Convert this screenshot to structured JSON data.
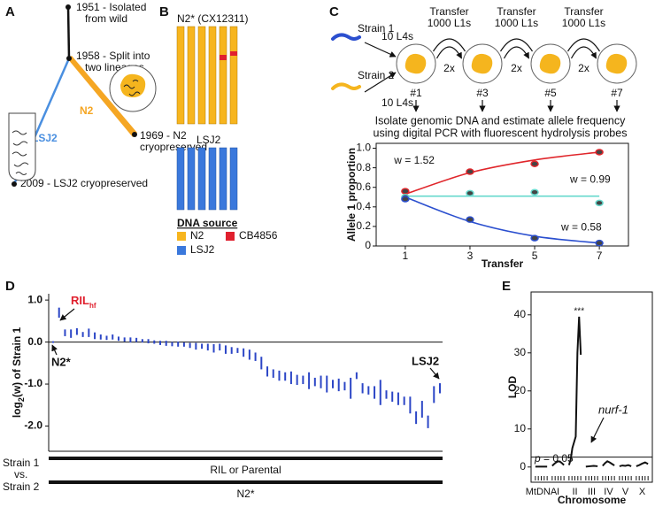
{
  "panel_labels": [
    "A",
    "B",
    "C",
    "D",
    "E"
  ],
  "panel_a": {
    "events": [
      [
        "1951 - Isolated",
        "from wild"
      ],
      [
        "1958 - Split into",
        "two lineages"
      ],
      [
        "1969 - N2",
        "cryopreserved"
      ],
      [
        "2009 - LSJ2 cryopreserved"
      ]
    ],
    "lineages": [
      {
        "name": "N2",
        "color": "#f5a623"
      },
      {
        "name": "LSJ2",
        "color": "#4a8fe0"
      }
    ]
  },
  "panel_b": {
    "top_label": "N2* (CX12311)",
    "bottom_label": "LSJ2",
    "legend_title": "DNA source",
    "legend": [
      {
        "name": "N2",
        "color": "#f7b51e"
      },
      {
        "name": "CB4856",
        "color": "#e0202e"
      },
      {
        "name": "LSJ2",
        "color": "#3a78dc"
      }
    ]
  },
  "panel_c": {
    "strains": [
      "Strain 1",
      "Strain 2"
    ],
    "inputs": [
      "10 L4s",
      "10 L4s"
    ],
    "transfers": [
      [
        "Transfer",
        "1000 L1s"
      ],
      [
        "Transfer",
        "1000 L1s"
      ],
      [
        "Transfer",
        "1000 L1s"
      ]
    ],
    "folds": [
      "2x",
      "2x",
      "2x"
    ],
    "plates": [
      "#1",
      "#3",
      "#5",
      "#7"
    ],
    "caption": [
      "Isolate genomic DNA and estimate allele frequency",
      "using digital PCR with fluorescent hydrolysis probes"
    ]
  },
  "chart_data": [
    {
      "type": "line",
      "x_label": "Transfer",
      "y_label": "Allele 1 proportion",
      "x": [
        1,
        3,
        5,
        7
      ],
      "xlim": [
        0.1,
        7.9
      ],
      "xticks": [
        1,
        3,
        5,
        7
      ],
      "ylim": [
        0,
        1.05
      ],
      "yticks": [
        0,
        0.2,
        0.4,
        0.6,
        0.8,
        {
          "value": 1,
          "label": "1.0"
        }
      ],
      "series": [
        {
          "name": "w = 1.52",
          "color": "#e0262b",
          "values": [
            0.56,
            0.76,
            0.84,
            0.96
          ],
          "fit": [
            0.53,
            0.75,
            0.88,
            0.96
          ]
        },
        {
          "name": "w = 0.99",
          "color": "#66d8cc",
          "values": [
            0.5,
            0.54,
            0.55,
            0.44
          ],
          "fit": [
            0.51,
            0.51,
            0.51,
            0.51
          ]
        },
        {
          "name": "w = 0.58",
          "color": "#2b4fcf",
          "values": [
            0.48,
            0.27,
            0.08,
            0.03
          ],
          "fit": [
            0.5,
            0.25,
            0.1,
            0.03
          ]
        }
      ]
    },
    {
      "type": "errorbar",
      "y_label": [
        "log",
        "2",
        "(w) of Strain 1"
      ],
      "ylim": [
        -2.6,
        1.15
      ],
      "yticks": [
        {
          "value": 1,
          "label": "1.0"
        },
        {
          "value": 0,
          "label": "0.0"
        },
        {
          "value": -1,
          "label": "-1.0"
        },
        {
          "value": -2,
          "label": "-2.0"
        }
      ],
      "color": "#2c46c6",
      "values": [
        0,
        0.7,
        0.22,
        0.2,
        0.25,
        0.18,
        0.22,
        0.15,
        0.12,
        0.1,
        0.12,
        0.08,
        0.06,
        0.05,
        0.05,
        0.03,
        0.02,
        0.0,
        -0.02,
        -0.03,
        -0.05,
        -0.05,
        -0.06,
        -0.08,
        -0.1,
        -0.1,
        -0.12,
        -0.15,
        -0.12,
        -0.18,
        -0.2,
        -0.2,
        -0.25,
        -0.3,
        -0.35,
        -0.5,
        -0.7,
        -0.75,
        -0.8,
        -0.82,
        -0.85,
        -0.9,
        -0.9,
        -0.92,
        -0.95,
        -0.95,
        -1.0,
        -1.0,
        -1.02,
        -1.05,
        -1.1,
        -0.8,
        -1.1,
        -1.15,
        -1.2,
        -1.2,
        -1.25,
        -1.3,
        -1.35,
        -1.4,
        -1.5,
        -1.8,
        -1.6,
        -1.9,
        -1.25,
        -1.1
      ],
      "errors": [
        0.02,
        0.12,
        0.08,
        0.1,
        0.08,
        0.06,
        0.1,
        0.08,
        0.06,
        0.05,
        0.06,
        0.05,
        0.05,
        0.06,
        0.05,
        0.04,
        0.05,
        0.04,
        0.05,
        0.06,
        0.05,
        0.06,
        0.05,
        0.06,
        0.08,
        0.06,
        0.08,
        0.1,
        0.08,
        0.1,
        0.08,
        0.06,
        0.1,
        0.12,
        0.1,
        0.15,
        0.12,
        0.1,
        0.12,
        0.1,
        0.15,
        0.12,
        0.1,
        0.2,
        0.1,
        0.15,
        0.2,
        0.1,
        0.15,
        0.1,
        0.25,
        0.08,
        0.12,
        0.1,
        0.15,
        0.3,
        0.1,
        0.12,
        0.15,
        0.1,
        0.2,
        0.15,
        0.2,
        0.15,
        0.2,
        0.12
      ],
      "annotations": {
        "ril": [
          "RIL",
          "hf"
        ],
        "n2": "N2*",
        "lsj2": "LSJ2"
      },
      "comparison": {
        "rows": [
          "Strain 1",
          "vs.",
          "Strain 2"
        ],
        "strain1": "RIL or Parental",
        "strain2": "N2*"
      }
    },
    {
      "type": "lod",
      "y_label": "LOD",
      "x_label": "Chromosome",
      "categories": [
        "MtDNA",
        "I",
        "II",
        "III",
        "IV",
        "V",
        "X"
      ],
      "traces": [
        [
          0.1,
          0.1
        ],
        [
          0.3,
          0.8,
          1.2,
          1.5,
          1.4,
          1.0,
          0.5
        ],
        [
          0.5,
          2,
          5,
          6.5,
          8,
          30,
          39.5,
          29.5
        ],
        [
          0.1,
          0.2,
          0.3,
          0.2
        ],
        [
          0.3,
          1.0,
          1.5,
          1.2,
          0.8,
          0.4
        ],
        [
          0.2,
          0.4,
          0.3,
          0.5,
          0.2
        ],
        [
          0.2,
          0.5,
          0.9,
          1.2,
          0.8
        ]
      ],
      "ylim": [
        -4,
        46
      ],
      "yticks": [
        0,
        10,
        20,
        30,
        40
      ],
      "threshold": 2.6,
      "threshold_label": [
        "p",
        " = 0.05"
      ],
      "peak_label": "***",
      "gene_label": "nurf-1",
      "color": "#111111"
    }
  ]
}
